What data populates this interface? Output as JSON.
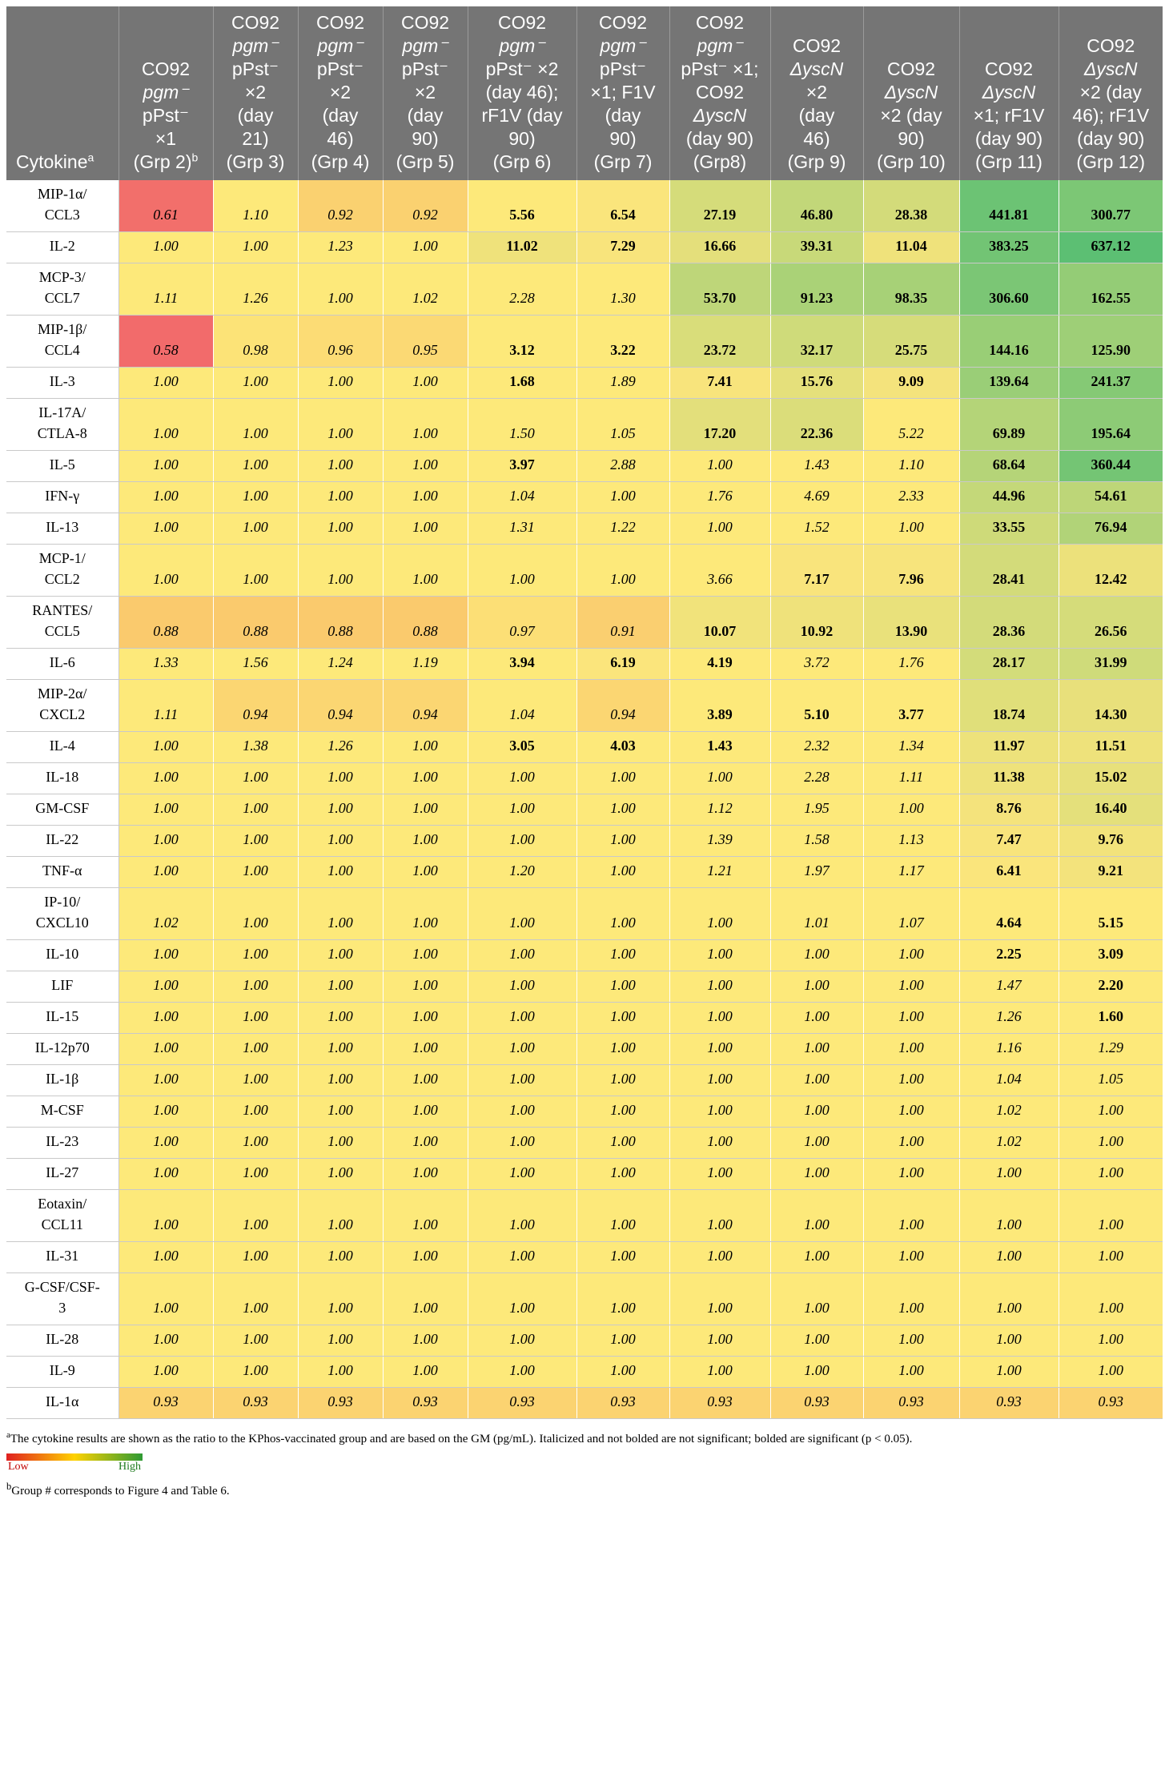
{
  "table": {
    "header": {
      "cytokine_label": "Cytokine",
      "cytokine_sup": "a",
      "columns": [
        {
          "lines": [
            "CO92",
            "pgm⁻",
            "pPst⁻",
            "×1",
            "(Grp 2)"
          ],
          "italic": [
            1
          ],
          "sup": "b"
        },
        {
          "lines": [
            "CO92",
            "pgm⁻",
            "pPst⁻",
            "×2",
            "(day",
            "21)",
            "(Grp 3)"
          ],
          "italic": [
            1
          ]
        },
        {
          "lines": [
            "CO92",
            "pgm⁻",
            "pPst⁻",
            "×2",
            "(day",
            "46)",
            "(Grp 4)"
          ],
          "italic": [
            1
          ]
        },
        {
          "lines": [
            "CO92",
            "pgm⁻",
            "pPst⁻",
            "×2",
            "(day",
            "90)",
            "(Grp 5)"
          ],
          "italic": [
            1
          ]
        },
        {
          "lines": [
            "CO92",
            "pgm⁻",
            "pPst⁻ ×2",
            "(day 46);",
            "rF1V (day",
            "90)",
            "(Grp 6)"
          ],
          "italic": [
            1
          ]
        },
        {
          "lines": [
            "CO92",
            "pgm⁻",
            "pPst⁻",
            "×1; F1V",
            "(day",
            "90)",
            "(Grp 7)"
          ],
          "italic": [
            1
          ]
        },
        {
          "lines": [
            "CO92",
            "pgm⁻",
            "pPst⁻ ×1;",
            "CO92",
            "ΔyscN",
            "(day 90)",
            "(Grp8)"
          ],
          "italic": [
            1,
            4
          ]
        },
        {
          "lines": [
            "CO92",
            "ΔyscN",
            "×2",
            "(day",
            "46)",
            "(Grp 9)"
          ],
          "italic": [
            1
          ]
        },
        {
          "lines": [
            "CO92",
            "ΔyscN",
            "×2 (day",
            "90)",
            "(Grp 10)"
          ],
          "italic": [
            1
          ]
        },
        {
          "lines": [
            "CO92",
            "ΔyscN",
            "×1; rF1V",
            "(day 90)",
            "(Grp 11)"
          ],
          "italic": [
            1
          ]
        },
        {
          "lines": [
            "CO92",
            "ΔyscN",
            "×2 (day",
            "46); rF1V",
            "(day 90)",
            "(Grp 12)"
          ],
          "italic": [
            1
          ]
        }
      ]
    },
    "rows": [
      {
        "name": [
          "MIP-1α/",
          "CCL3"
        ],
        "values": [
          "0.61",
          "1.10",
          "0.92",
          "0.92",
          "5.56",
          "6.54",
          "27.19",
          "46.80",
          "28.38",
          "441.81",
          "300.77"
        ],
        "sig": [
          0,
          0,
          0,
          0,
          1,
          1,
          1,
          1,
          1,
          1,
          1
        ]
      },
      {
        "name": [
          "IL-2"
        ],
        "values": [
          "1.00",
          "1.00",
          "1.23",
          "1.00",
          "11.02",
          "7.29",
          "16.66",
          "39.31",
          "11.04",
          "383.25",
          "637.12"
        ],
        "sig": [
          0,
          0,
          0,
          0,
          1,
          1,
          1,
          1,
          1,
          1,
          1
        ]
      },
      {
        "name": [
          "MCP-3/",
          "CCL7"
        ],
        "values": [
          "1.11",
          "1.26",
          "1.00",
          "1.02",
          "2.28",
          "1.30",
          "53.70",
          "91.23",
          "98.35",
          "306.60",
          "162.55"
        ],
        "sig": [
          0,
          0,
          0,
          0,
          0,
          0,
          1,
          1,
          1,
          1,
          1
        ]
      },
      {
        "name": [
          "MIP-1β/",
          "CCL4"
        ],
        "values": [
          "0.58",
          "0.98",
          "0.96",
          "0.95",
          "3.12",
          "3.22",
          "23.72",
          "32.17",
          "25.75",
          "144.16",
          "125.90"
        ],
        "sig": [
          0,
          0,
          0,
          0,
          1,
          1,
          1,
          1,
          1,
          1,
          1
        ]
      },
      {
        "name": [
          "IL-3"
        ],
        "values": [
          "1.00",
          "1.00",
          "1.00",
          "1.00",
          "1.68",
          "1.89",
          "7.41",
          "15.76",
          "9.09",
          "139.64",
          "241.37"
        ],
        "sig": [
          0,
          0,
          0,
          0,
          1,
          0,
          1,
          1,
          1,
          1,
          1
        ]
      },
      {
        "name": [
          "IL-17A/",
          "CTLA-8"
        ],
        "values": [
          "1.00",
          "1.00",
          "1.00",
          "1.00",
          "1.50",
          "1.05",
          "17.20",
          "22.36",
          "5.22",
          "69.89",
          "195.64"
        ],
        "sig": [
          0,
          0,
          0,
          0,
          0,
          0,
          1,
          1,
          0,
          1,
          1
        ]
      },
      {
        "name": [
          "IL-5"
        ],
        "values": [
          "1.00",
          "1.00",
          "1.00",
          "1.00",
          "3.97",
          "2.88",
          "1.00",
          "1.43",
          "1.10",
          "68.64",
          "360.44"
        ],
        "sig": [
          0,
          0,
          0,
          0,
          1,
          0,
          0,
          0,
          0,
          1,
          1
        ]
      },
      {
        "name": [
          "IFN-γ"
        ],
        "values": [
          "1.00",
          "1.00",
          "1.00",
          "1.00",
          "1.04",
          "1.00",
          "1.76",
          "4.69",
          "2.33",
          "44.96",
          "54.61"
        ],
        "sig": [
          0,
          0,
          0,
          0,
          0,
          0,
          0,
          0,
          0,
          1,
          1
        ]
      },
      {
        "name": [
          "IL-13"
        ],
        "values": [
          "1.00",
          "1.00",
          "1.00",
          "1.00",
          "1.31",
          "1.22",
          "1.00",
          "1.52",
          "1.00",
          "33.55",
          "76.94"
        ],
        "sig": [
          0,
          0,
          0,
          0,
          0,
          0,
          0,
          0,
          0,
          1,
          1
        ]
      },
      {
        "name": [
          "MCP-1/",
          "CCL2"
        ],
        "values": [
          "1.00",
          "1.00",
          "1.00",
          "1.00",
          "1.00",
          "1.00",
          "3.66",
          "7.17",
          "7.96",
          "28.41",
          "12.42"
        ],
        "sig": [
          0,
          0,
          0,
          0,
          0,
          0,
          0,
          1,
          1,
          1,
          1
        ]
      },
      {
        "name": [
          "RANTES/",
          "CCL5"
        ],
        "values": [
          "0.88",
          "0.88",
          "0.88",
          "0.88",
          "0.97",
          "0.91",
          "10.07",
          "10.92",
          "13.90",
          "28.36",
          "26.56"
        ],
        "sig": [
          0,
          0,
          0,
          0,
          0,
          0,
          1,
          1,
          1,
          1,
          1
        ]
      },
      {
        "name": [
          "IL-6"
        ],
        "values": [
          "1.33",
          "1.56",
          "1.24",
          "1.19",
          "3.94",
          "6.19",
          "4.19",
          "3.72",
          "1.76",
          "28.17",
          "31.99"
        ],
        "sig": [
          0,
          0,
          0,
          0,
          1,
          1,
          1,
          0,
          0,
          1,
          1
        ]
      },
      {
        "name": [
          "MIP-2α/",
          "CXCL2"
        ],
        "values": [
          "1.11",
          "0.94",
          "0.94",
          "0.94",
          "1.04",
          "0.94",
          "3.89",
          "5.10",
          "3.77",
          "18.74",
          "14.30"
        ],
        "sig": [
          0,
          0,
          0,
          0,
          0,
          0,
          1,
          1,
          1,
          1,
          1
        ]
      },
      {
        "name": [
          "IL-4"
        ],
        "values": [
          "1.00",
          "1.38",
          "1.26",
          "1.00",
          "3.05",
          "4.03",
          "1.43",
          "2.32",
          "1.34",
          "11.97",
          "11.51"
        ],
        "sig": [
          0,
          0,
          0,
          0,
          1,
          1,
          1,
          0,
          0,
          1,
          1
        ]
      },
      {
        "name": [
          "IL-18"
        ],
        "values": [
          "1.00",
          "1.00",
          "1.00",
          "1.00",
          "1.00",
          "1.00",
          "1.00",
          "2.28",
          "1.11",
          "11.38",
          "15.02"
        ],
        "sig": [
          0,
          0,
          0,
          0,
          0,
          0,
          0,
          0,
          0,
          1,
          1
        ]
      },
      {
        "name": [
          "GM-CSF"
        ],
        "values": [
          "1.00",
          "1.00",
          "1.00",
          "1.00",
          "1.00",
          "1.00",
          "1.12",
          "1.95",
          "1.00",
          "8.76",
          "16.40"
        ],
        "sig": [
          0,
          0,
          0,
          0,
          0,
          0,
          0,
          0,
          0,
          1,
          1
        ]
      },
      {
        "name": [
          "IL-22"
        ],
        "values": [
          "1.00",
          "1.00",
          "1.00",
          "1.00",
          "1.00",
          "1.00",
          "1.39",
          "1.58",
          "1.13",
          "7.47",
          "9.76"
        ],
        "sig": [
          0,
          0,
          0,
          0,
          0,
          0,
          0,
          0,
          0,
          1,
          1
        ]
      },
      {
        "name": [
          "TNF-α"
        ],
        "values": [
          "1.00",
          "1.00",
          "1.00",
          "1.00",
          "1.20",
          "1.00",
          "1.21",
          "1.97",
          "1.17",
          "6.41",
          "9.21"
        ],
        "sig": [
          0,
          0,
          0,
          0,
          0,
          0,
          0,
          0,
          0,
          1,
          1
        ]
      },
      {
        "name": [
          "IP-10/",
          "CXCL10"
        ],
        "values": [
          "1.02",
          "1.00",
          "1.00",
          "1.00",
          "1.00",
          "1.00",
          "1.00",
          "1.01",
          "1.07",
          "4.64",
          "5.15"
        ],
        "sig": [
          0,
          0,
          0,
          0,
          0,
          0,
          0,
          0,
          0,
          1,
          1
        ]
      },
      {
        "name": [
          "IL-10"
        ],
        "values": [
          "1.00",
          "1.00",
          "1.00",
          "1.00",
          "1.00",
          "1.00",
          "1.00",
          "1.00",
          "1.00",
          "2.25",
          "3.09"
        ],
        "sig": [
          0,
          0,
          0,
          0,
          0,
          0,
          0,
          0,
          0,
          1,
          1
        ]
      },
      {
        "name": [
          "LIF"
        ],
        "values": [
          "1.00",
          "1.00",
          "1.00",
          "1.00",
          "1.00",
          "1.00",
          "1.00",
          "1.00",
          "1.00",
          "1.47",
          "2.20"
        ],
        "sig": [
          0,
          0,
          0,
          0,
          0,
          0,
          0,
          0,
          0,
          0,
          1
        ]
      },
      {
        "name": [
          "IL-15"
        ],
        "values": [
          "1.00",
          "1.00",
          "1.00",
          "1.00",
          "1.00",
          "1.00",
          "1.00",
          "1.00",
          "1.00",
          "1.26",
          "1.60"
        ],
        "sig": [
          0,
          0,
          0,
          0,
          0,
          0,
          0,
          0,
          0,
          0,
          1
        ]
      },
      {
        "name": [
          "IL-12p70"
        ],
        "values": [
          "1.00",
          "1.00",
          "1.00",
          "1.00",
          "1.00",
          "1.00",
          "1.00",
          "1.00",
          "1.00",
          "1.16",
          "1.29"
        ],
        "sig": [
          0,
          0,
          0,
          0,
          0,
          0,
          0,
          0,
          0,
          0,
          0
        ]
      },
      {
        "name": [
          "IL-1β"
        ],
        "values": [
          "1.00",
          "1.00",
          "1.00",
          "1.00",
          "1.00",
          "1.00",
          "1.00",
          "1.00",
          "1.00",
          "1.04",
          "1.05"
        ],
        "sig": [
          0,
          0,
          0,
          0,
          0,
          0,
          0,
          0,
          0,
          0,
          0
        ]
      },
      {
        "name": [
          "M-CSF"
        ],
        "values": [
          "1.00",
          "1.00",
          "1.00",
          "1.00",
          "1.00",
          "1.00",
          "1.00",
          "1.00",
          "1.00",
          "1.02",
          "1.00"
        ],
        "sig": [
          0,
          0,
          0,
          0,
          0,
          0,
          0,
          0,
          0,
          0,
          0
        ]
      },
      {
        "name": [
          "IL-23"
        ],
        "values": [
          "1.00",
          "1.00",
          "1.00",
          "1.00",
          "1.00",
          "1.00",
          "1.00",
          "1.00",
          "1.00",
          "1.02",
          "1.00"
        ],
        "sig": [
          0,
          0,
          0,
          0,
          0,
          0,
          0,
          0,
          0,
          0,
          0
        ]
      },
      {
        "name": [
          "IL-27"
        ],
        "values": [
          "1.00",
          "1.00",
          "1.00",
          "1.00",
          "1.00",
          "1.00",
          "1.00",
          "1.00",
          "1.00",
          "1.00",
          "1.00"
        ],
        "sig": [
          0,
          0,
          0,
          0,
          0,
          0,
          0,
          0,
          0,
          0,
          0
        ]
      },
      {
        "name": [
          "Eotaxin/",
          "CCL11"
        ],
        "values": [
          "1.00",
          "1.00",
          "1.00",
          "1.00",
          "1.00",
          "1.00",
          "1.00",
          "1.00",
          "1.00",
          "1.00",
          "1.00"
        ],
        "sig": [
          0,
          0,
          0,
          0,
          0,
          0,
          0,
          0,
          0,
          0,
          0
        ]
      },
      {
        "name": [
          "IL-31"
        ],
        "values": [
          "1.00",
          "1.00",
          "1.00",
          "1.00",
          "1.00",
          "1.00",
          "1.00",
          "1.00",
          "1.00",
          "1.00",
          "1.00"
        ],
        "sig": [
          0,
          0,
          0,
          0,
          0,
          0,
          0,
          0,
          0,
          0,
          0
        ]
      },
      {
        "name": [
          "G-CSF/CSF-",
          "3"
        ],
        "values": [
          "1.00",
          "1.00",
          "1.00",
          "1.00",
          "1.00",
          "1.00",
          "1.00",
          "1.00",
          "1.00",
          "1.00",
          "1.00"
        ],
        "sig": [
          0,
          0,
          0,
          0,
          0,
          0,
          0,
          0,
          0,
          0,
          0
        ]
      },
      {
        "name": [
          "IL-28"
        ],
        "values": [
          "1.00",
          "1.00",
          "1.00",
          "1.00",
          "1.00",
          "1.00",
          "1.00",
          "1.00",
          "1.00",
          "1.00",
          "1.00"
        ],
        "sig": [
          0,
          0,
          0,
          0,
          0,
          0,
          0,
          0,
          0,
          0,
          0
        ]
      },
      {
        "name": [
          "IL-9"
        ],
        "values": [
          "1.00",
          "1.00",
          "1.00",
          "1.00",
          "1.00",
          "1.00",
          "1.00",
          "1.00",
          "1.00",
          "1.00",
          "1.00"
        ],
        "sig": [
          0,
          0,
          0,
          0,
          0,
          0,
          0,
          0,
          0,
          0,
          0
        ]
      },
      {
        "name": [
          "IL-1α"
        ],
        "values": [
          "0.93",
          "0.93",
          "0.93",
          "0.93",
          "0.93",
          "0.93",
          "0.93",
          "0.93",
          "0.93",
          "0.93",
          "0.93"
        ],
        "sig": [
          0,
          0,
          0,
          0,
          0,
          0,
          0,
          0,
          0,
          0,
          0
        ]
      }
    ]
  },
  "colors": {
    "header_bg": "#757575",
    "heat_low": "#f26b6b",
    "heat_mid_low": "#f9c46b",
    "heat_neutral": "#fde97a",
    "heat_high": "#5cbf73"
  },
  "footnotes": {
    "a_sup": "a",
    "a_text": "The cytokine results are shown as the ratio to the KPhos-vaccinated group and are based on the GM (pg/mL). Italicized and not bolded are not significant; bolded are significant (p < 0.05).",
    "legend_low": "Low",
    "legend_high": "High",
    "b_sup": "b",
    "b_text_1": "Group # corresponds to ",
    "b_link_1": "Figure 4",
    "b_text_2": " and ",
    "b_link_2": "Table 6",
    "b_text_3": "."
  }
}
